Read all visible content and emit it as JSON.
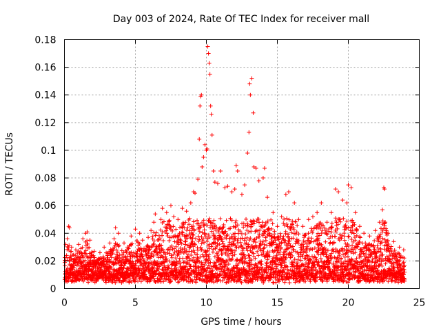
{
  "chart_data": {
    "type": "scatter",
    "title": "Day 003 of 2024, Rate Of TEC Index for receiver mall",
    "xlabel": "GPS time / hours",
    "ylabel": "ROTI / TECUs",
    "xlim": [
      0,
      25
    ],
    "ylim": [
      0,
      0.18
    ],
    "x_ticks": [
      0,
      5,
      10,
      15,
      20,
      25
    ],
    "y_ticks": [
      0,
      0.02,
      0.04,
      0.06,
      0.08,
      0.1,
      0.12,
      0.14,
      0.16,
      0.18
    ],
    "x_tick_labels": [
      "0",
      "5",
      "10",
      "15",
      "20",
      "25"
    ],
    "y_tick_labels": [
      "0",
      "0.02",
      "0.04",
      "0.06",
      "0.08",
      "0.1",
      "0.12",
      "0.14",
      "0.16",
      "0.18"
    ],
    "grid": true,
    "marker": "+",
    "series": [
      {
        "name": "ROTI",
        "color": "#ff0000",
        "points": [
          [
            0.1,
            0.032
          ],
          [
            0.2,
            0.036
          ],
          [
            0.3,
            0.045
          ],
          [
            0.35,
            0.044
          ],
          [
            0.5,
            0.03
          ],
          [
            0.8,
            0.028
          ],
          [
            1.0,
            0.032
          ],
          [
            1.3,
            0.036
          ],
          [
            1.5,
            0.04
          ],
          [
            1.6,
            0.041
          ],
          [
            1.8,
            0.035
          ],
          [
            2.1,
            0.027
          ],
          [
            2.5,
            0.026
          ],
          [
            2.8,
            0.03
          ],
          [
            3.2,
            0.033
          ],
          [
            3.5,
            0.036
          ],
          [
            3.6,
            0.044
          ],
          [
            3.8,
            0.04
          ],
          [
            4.2,
            0.033
          ],
          [
            4.7,
            0.038
          ],
          [
            5.0,
            0.043
          ],
          [
            5.3,
            0.04
          ],
          [
            5.5,
            0.035
          ],
          [
            5.9,
            0.037
          ],
          [
            6.1,
            0.042
          ],
          [
            6.3,
            0.048
          ],
          [
            6.4,
            0.054
          ],
          [
            6.8,
            0.05
          ],
          [
            6.9,
            0.058
          ],
          [
            7.2,
            0.055
          ],
          [
            7.5,
            0.06
          ],
          [
            7.7,
            0.052
          ],
          [
            8.0,
            0.05
          ],
          [
            8.3,
            0.058
          ],
          [
            8.6,
            0.056
          ],
          [
            8.9,
            0.062
          ],
          [
            9.1,
            0.07
          ],
          [
            9.2,
            0.069
          ],
          [
            9.4,
            0.079
          ],
          [
            9.5,
            0.108
          ],
          [
            9.55,
            0.132
          ],
          [
            9.6,
            0.139
          ],
          [
            9.65,
            0.14
          ],
          [
            9.7,
            0.088
          ],
          [
            9.8,
            0.095
          ],
          [
            9.9,
            0.104
          ],
          [
            10.0,
            0.1
          ],
          [
            10.05,
            0.101
          ],
          [
            10.1,
            0.175
          ],
          [
            10.15,
            0.17
          ],
          [
            10.2,
            0.163
          ],
          [
            10.25,
            0.155
          ],
          [
            10.3,
            0.132
          ],
          [
            10.35,
            0.126
          ],
          [
            10.4,
            0.111
          ],
          [
            10.5,
            0.085
          ],
          [
            10.6,
            0.077
          ],
          [
            10.8,
            0.076
          ],
          [
            11.0,
            0.085
          ],
          [
            11.3,
            0.073
          ],
          [
            11.5,
            0.074
          ],
          [
            11.8,
            0.07
          ],
          [
            12.0,
            0.072
          ],
          [
            12.1,
            0.089
          ],
          [
            12.2,
            0.085
          ],
          [
            12.5,
            0.068
          ],
          [
            12.7,
            0.075
          ],
          [
            12.9,
            0.098
          ],
          [
            13.0,
            0.113
          ],
          [
            13.05,
            0.148
          ],
          [
            13.1,
            0.14
          ],
          [
            13.2,
            0.152
          ],
          [
            13.3,
            0.127
          ],
          [
            13.35,
            0.088
          ],
          [
            13.5,
            0.087
          ],
          [
            13.7,
            0.078
          ],
          [
            14.0,
            0.08
          ],
          [
            14.1,
            0.087
          ],
          [
            14.3,
            0.066
          ],
          [
            14.7,
            0.055
          ],
          [
            15.0,
            0.045
          ],
          [
            15.3,
            0.052
          ],
          [
            15.6,
            0.068
          ],
          [
            15.8,
            0.07
          ],
          [
            16.2,
            0.062
          ],
          [
            16.5,
            0.05
          ],
          [
            16.8,
            0.045
          ],
          [
            17.2,
            0.05
          ],
          [
            17.5,
            0.052
          ],
          [
            17.8,
            0.055
          ],
          [
            18.1,
            0.062
          ],
          [
            18.5,
            0.048
          ],
          [
            18.8,
            0.055
          ],
          [
            19.1,
            0.072
          ],
          [
            19.3,
            0.07
          ],
          [
            19.6,
            0.064
          ],
          [
            19.9,
            0.062
          ],
          [
            20.0,
            0.075
          ],
          [
            20.2,
            0.073
          ],
          [
            20.5,
            0.055
          ],
          [
            20.8,
            0.045
          ],
          [
            21.1,
            0.04
          ],
          [
            21.5,
            0.038
          ],
          [
            21.9,
            0.042
          ],
          [
            22.2,
            0.048
          ],
          [
            22.4,
            0.057
          ],
          [
            22.5,
            0.073
          ],
          [
            22.55,
            0.072
          ],
          [
            22.8,
            0.04
          ],
          [
            23.2,
            0.034
          ],
          [
            23.6,
            0.03
          ],
          [
            23.9,
            0.028
          ]
        ]
      }
    ]
  }
}
